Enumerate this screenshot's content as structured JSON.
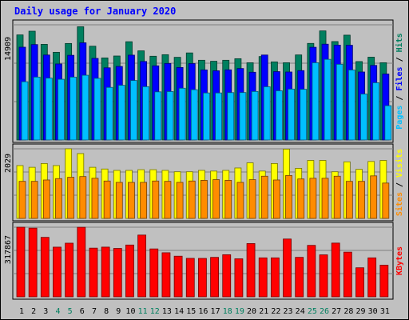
{
  "chart_data": {
    "type": "bar",
    "title": "Daily usage for January 2020",
    "categories": [
      "1",
      "2",
      "3",
      "4",
      "5",
      "6",
      "7",
      "8",
      "9",
      "10",
      "11",
      "12",
      "13",
      "14",
      "15",
      "16",
      "17",
      "18",
      "19",
      "20",
      "21",
      "22",
      "23",
      "24",
      "25",
      "26",
      "27",
      "28",
      "29",
      "30",
      "31"
    ],
    "weekend_days": [
      "4",
      "5",
      "11",
      "12",
      "18",
      "19",
      "25",
      "26"
    ],
    "panels": [
      {
        "name": "hits-files-pages",
        "ymax_label": "14909",
        "ylim": [
          0,
          14909
        ],
        "labels": {
          "pages": "Pages",
          "files": "Files",
          "hits": "Hits",
          "sep": " / "
        },
        "series": [
          {
            "name": "Hits",
            "color": "#007f5f",
            "values": [
              13600,
              14080,
              12380,
              11350,
              12490,
              14660,
              12140,
              10620,
              10870,
              12720,
              11540,
              10840,
              11040,
              10700,
              11270,
              10320,
              10190,
              10320,
              10520,
              10000,
              10800,
              10110,
              10000,
              11010,
              12500,
              14120,
              12740,
              13570,
              10150,
              10720,
              10000
            ]
          },
          {
            "name": "Files",
            "color": "#0000ff",
            "values": [
              12010,
              12350,
              11000,
              9840,
              10960,
              12580,
              10560,
              9340,
              9520,
              10980,
              10160,
              9600,
              9900,
              9380,
              9890,
              9070,
              8960,
              9080,
              9250,
              8770,
              11000,
              8850,
              8800,
              8980,
              12000,
              12400,
              12280,
              12260,
              8800,
              9650,
              8540
            ]
          },
          {
            "name": "Pages",
            "color": "#00bfff",
            "values": [
              7540,
              8140,
              8010,
              7860,
              8140,
              8380,
              7980,
              6810,
              7080,
              7700,
              6900,
              6230,
              6270,
              6700,
              6510,
              6090,
              6090,
              6130,
              6140,
              6280,
              6890,
              6370,
              6590,
              6560,
              10000,
              10440,
              9800,
              9060,
              5950,
              7410,
              4440
            ]
          }
        ]
      },
      {
        "name": "visits-sites",
        "ymax_label": "2029",
        "ylim": [
          0,
          2029
        ],
        "labels": {
          "sites": "Sites",
          "visits": "Visits",
          "sep": " / "
        },
        "series": [
          {
            "name": "Visits",
            "color": "#ffff00",
            "values": [
              1540,
              1490,
              1600,
              1540,
              2030,
              1890,
              1490,
              1440,
              1400,
              1400,
              1420,
              1420,
              1400,
              1360,
              1360,
              1400,
              1380,
              1400,
              1470,
              1620,
              1380,
              1600,
              2020,
              1460,
              1690,
              1690,
              1360,
              1650,
              1430,
              1660,
              1690
            ]
          },
          {
            "name": "Sites",
            "color": "#ff8c00",
            "values": [
              1080,
              1080,
              1120,
              1160,
              1200,
              1220,
              1170,
              1090,
              1050,
              1050,
              1050,
              1090,
              1080,
              1050,
              1090,
              1110,
              1130,
              1110,
              1050,
              1130,
              1230,
              1120,
              1250,
              1150,
              1170,
              1170,
              1230,
              1080,
              1080,
              1240,
              1030
            ]
          }
        ]
      },
      {
        "name": "kbytes",
        "ymax_label": "317867",
        "ylim": [
          0,
          317867
        ],
        "labels": {
          "kbytes": "KBytes"
        },
        "series": [
          {
            "name": "KBytes",
            "color": "#ff0000",
            "values": [
              317800,
              313600,
              271500,
              226800,
              244900,
              317500,
              222300,
              226900,
              220900,
              236500,
              282000,
              218700,
              201200,
              185500,
              175600,
              175400,
              180100,
              192200,
              173600,
              243100,
              177900,
              177900,
              263900,
              180200,
              234900,
              191600,
              245300,
              204100,
              132600,
              177900,
              144600
            ]
          }
        ]
      }
    ]
  }
}
